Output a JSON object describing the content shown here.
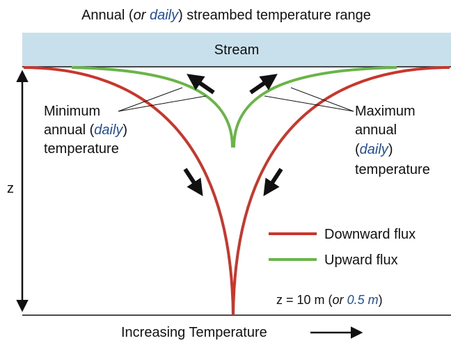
{
  "title": {
    "parts": [
      "Annual (",
      "or",
      " ",
      "daily",
      ") streambed temperature range"
    ]
  },
  "stream_label": "Stream",
  "depth_label": "z",
  "minimum_label": {
    "lines": [
      [
        "Minimum"
      ],
      [
        "annual (",
        "daily",
        ")"
      ],
      [
        "temperature"
      ]
    ]
  },
  "maximum_label": {
    "lines": [
      [
        "Maximum"
      ],
      [
        "annual"
      ],
      [
        "(",
        "daily",
        ")"
      ],
      [
        "temperature"
      ]
    ]
  },
  "legend": {
    "items": [
      "Downward flux",
      "Upward flux"
    ]
  },
  "depth_note": {
    "parts": [
      "z = 10 m (",
      "or",
      " ",
      "0.5 m",
      ")"
    ]
  },
  "x_axis_label": "Increasing Temperature"
}
